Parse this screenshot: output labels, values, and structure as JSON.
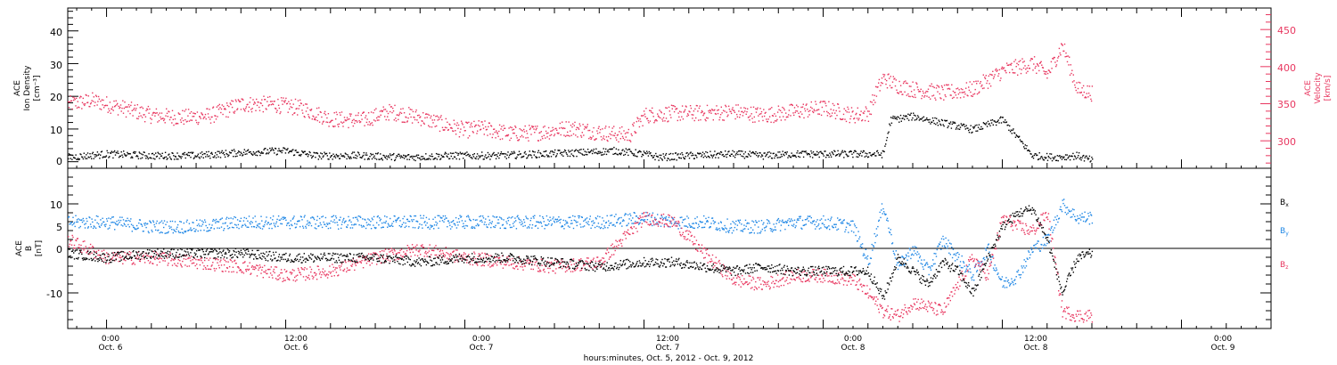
{
  "colors": {
    "black": "#000000",
    "pink": "#e8365f",
    "blue": "#1f87e5"
  },
  "footer": {
    "xlabel": "hours:minutes, Oct. 5, 2012 - Oct. 9, 2012"
  },
  "chart_data": [
    {
      "type": "scatter",
      "panel": "top",
      "ylabel_left": [
        "ACE",
        "Ion Density",
        "[cm⁻³]"
      ],
      "ylabel_right": [
        "ACE",
        "Velocity",
        "[km/s]"
      ],
      "ylim_left": [
        -2,
        47
      ],
      "ylim_right": [
        263,
        479
      ],
      "left_ticks": [
        "0",
        "10",
        "20",
        "30",
        "40"
      ],
      "right_ticks": [
        "300",
        "350",
        "400",
        "450"
      ],
      "x_ticks": [
        {
          "time": "0:00",
          "day": "Oct. 6",
          "hours": 24
        },
        {
          "time": "12:00",
          "day": "Oct. 6",
          "hours": 36
        },
        {
          "time": "0:00",
          "day": "Oct. 7",
          "hours": 48
        },
        {
          "time": "12:00",
          "day": "Oct. 7",
          "hours": 60
        },
        {
          "time": "0:00",
          "day": "Oct. 8",
          "hours": 72
        },
        {
          "time": "12:00",
          "day": "Oct. 8",
          "hours": 84
        },
        {
          "time": "0:00",
          "day": "Oct. 9",
          "hours": 96
        }
      ],
      "xlim_hours": [
        21.4,
        102.0
      ],
      "series": [
        {
          "axis": "left",
          "color": "#000000",
          "x": [
            21.4,
            24,
            27,
            30,
            33,
            36,
            38,
            41,
            44,
            47,
            50,
            53,
            56,
            58,
            60,
            61,
            63,
            66,
            68,
            70,
            73,
            75,
            76,
            76.5,
            78,
            80,
            82,
            84,
            86,
            87.5,
            89,
            90
          ],
          "values": [
            1.5,
            2.5,
            2,
            2,
            3,
            3.5,
            2,
            2,
            1.5,
            2,
            2,
            2.5,
            3,
            3.5,
            2.5,
            1.5,
            2,
            2.5,
            2,
            2.5,
            2.5,
            2.5,
            2.5,
            13,
            14,
            12,
            10,
            13,
            2,
            1.5,
            2,
            0.5
          ]
        },
        {
          "axis": "right",
          "color": "#e8365f",
          "x": [
            21.4,
            23,
            25,
            27,
            29,
            31,
            33,
            35,
            37,
            39,
            41,
            43,
            45,
            47,
            48,
            49,
            51,
            53,
            55,
            57,
            59,
            60,
            62,
            64,
            66,
            68,
            70,
            72,
            74,
            75,
            75.5,
            76,
            77,
            78,
            80,
            82,
            84,
            86,
            87,
            88,
            89,
            90
          ],
          "values": [
            350,
            355,
            345,
            335,
            332,
            335,
            350,
            350,
            345,
            330,
            328,
            340,
            332,
            320,
            315,
            318,
            310,
            312,
            318,
            312,
            308,
            335,
            338,
            338,
            340,
            335,
            340,
            345,
            335,
            338,
            365,
            385,
            375,
            370,
            365,
            370,
            395,
            405,
            390,
            430,
            370,
            365
          ]
        }
      ]
    },
    {
      "type": "scatter",
      "panel": "bottom",
      "ylabel_left": [
        "ACE",
        "B",
        "[nT]"
      ],
      "ylim": [
        -18,
        18
      ],
      "left_ticks": [
        "10",
        "5",
        "0",
        "-10"
      ],
      "x_ticks": [
        {
          "time": "0:00",
          "day": "Oct. 6",
          "hours": 24
        },
        {
          "time": "12:00",
          "day": "Oct. 6",
          "hours": 36
        },
        {
          "time": "0:00",
          "day": "Oct. 7",
          "hours": 48
        },
        {
          "time": "12:00",
          "day": "Oct. 7",
          "hours": 60
        },
        {
          "time": "0:00",
          "day": "Oct. 8",
          "hours": 72
        },
        {
          "time": "12:00",
          "day": "Oct. 8",
          "hours": 84
        },
        {
          "time": "0:00",
          "day": "Oct. 9",
          "hours": 96
        }
      ],
      "xlim_hours": [
        21.4,
        102.0
      ],
      "legend": [
        {
          "base": "B",
          "sub": "x",
          "color": "#000000"
        },
        {
          "base": "B",
          "sub": "y",
          "color": "#1f87e5"
        },
        {
          "base": "B",
          "sub": "z",
          "color": "#e8365f"
        }
      ],
      "series": [
        {
          "name": "Bx",
          "color": "#000000",
          "x": [
            21.4,
            24,
            27,
            30,
            33,
            36,
            39,
            42,
            45,
            48,
            51,
            54,
            57,
            60,
            62,
            64,
            66,
            68,
            70,
            72,
            74,
            75,
            76,
            77,
            78,
            79,
            80,
            81,
            82,
            83,
            84,
            85,
            86,
            87,
            88,
            89,
            90
          ],
          "values": [
            -1,
            -2,
            -1,
            -1,
            -1,
            -2,
            -2,
            -2,
            -3,
            -2,
            -2,
            -3,
            -4,
            -3,
            -3,
            -4,
            -5,
            -4,
            -5,
            -5,
            -5,
            -5,
            -11,
            -2,
            -5,
            -8,
            -3,
            -5,
            -10,
            -2,
            5,
            8,
            9,
            2,
            -10,
            -2,
            -1
          ]
        },
        {
          "name": "By",
          "color": "#1f87e5",
          "x": [
            21.4,
            24,
            27,
            30,
            33,
            36,
            39,
            42,
            45,
            48,
            51,
            54,
            57,
            60,
            62,
            64,
            66,
            68,
            70,
            72,
            74,
            75,
            76,
            77,
            78,
            79,
            80,
            81,
            82,
            83,
            84,
            85,
            86,
            87,
            88,
            89,
            90
          ],
          "values": [
            6,
            6,
            5,
            5,
            6,
            6,
            6,
            6,
            6,
            6,
            6,
            6,
            6,
            7,
            6,
            6,
            5,
            5,
            6,
            6,
            5,
            -3,
            10,
            -4,
            0,
            -5,
            2,
            -2,
            -6,
            0,
            -8,
            -6,
            0,
            2,
            10,
            7,
            7
          ]
        },
        {
          "name": "Bz",
          "color": "#e8365f",
          "x": [
            21.4,
            24,
            27,
            30,
            33,
            36,
            39,
            42,
            45,
            48,
            51,
            54,
            57,
            60,
            62,
            64,
            66,
            68,
            70,
            72,
            74,
            75,
            76,
            77,
            78,
            79,
            80,
            81,
            82,
            83,
            84,
            85,
            86,
            87,
            88,
            89,
            90
          ],
          "values": [
            2,
            -2,
            -2,
            -3,
            -4,
            -6,
            -5,
            -2,
            0,
            -2,
            -3,
            -4,
            -3,
            7,
            6,
            -1,
            -7,
            -8,
            -6,
            -6,
            -7,
            -10,
            -14,
            -15,
            -12,
            -13,
            -14,
            -8,
            -2,
            -6,
            7,
            5,
            4,
            8,
            -14,
            -15,
            -15
          ]
        }
      ]
    }
  ]
}
